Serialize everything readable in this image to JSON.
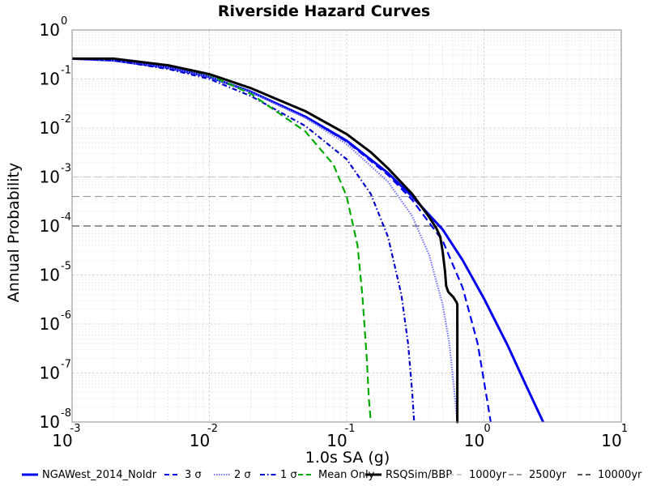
{
  "chart_data": {
    "type": "line",
    "title": "Riverside Hazard Curves",
    "xlabel": "1.0s SA (g)",
    "ylabel": "Annual Probability",
    "xscale": "log",
    "yscale": "log",
    "xlim": [
      0.001,
      10
    ],
    "ylim": [
      1e-08,
      1
    ],
    "grid": true,
    "legend_position": "bottom",
    "x_ticks": [
      {
        "base": "10",
        "exp": "-3"
      },
      {
        "base": "10",
        "exp": "-2"
      },
      {
        "base": "10",
        "exp": "-1"
      },
      {
        "base": "10",
        "exp": "0"
      },
      {
        "base": "10",
        "exp": "1"
      }
    ],
    "y_ticks": [
      {
        "base": "10",
        "exp": "0"
      },
      {
        "base": "10",
        "exp": "-1"
      },
      {
        "base": "10",
        "exp": "-2"
      },
      {
        "base": "10",
        "exp": "-3"
      },
      {
        "base": "10",
        "exp": "-4"
      },
      {
        "base": "10",
        "exp": "-5"
      },
      {
        "base": "10",
        "exp": "-6"
      },
      {
        "base": "10",
        "exp": "-7"
      },
      {
        "base": "10",
        "exp": "-8"
      }
    ],
    "series": [
      {
        "name": "NGAWest_2014_NoIdr",
        "color": "#0000ee",
        "dash": "solid",
        "x": [
          0.001,
          0.002,
          0.005,
          0.01,
          0.02,
          0.05,
          0.1,
          0.2,
          0.3,
          0.5,
          0.7,
          1.0,
          1.5,
          2.0,
          2.7
        ],
        "y": [
          0.26,
          0.24,
          0.17,
          0.11,
          0.055,
          0.017,
          0.0055,
          0.0012,
          0.0004,
          8.5e-05,
          2e-05,
          3.3e-06,
          3.5e-07,
          6e-08,
          1e-08
        ]
      },
      {
        "name": "3 σ",
        "color": "#0000ee",
        "dash": "dashed",
        "x": [
          0.001,
          0.002,
          0.005,
          0.01,
          0.02,
          0.05,
          0.1,
          0.2,
          0.3,
          0.5,
          0.7,
          0.9,
          1.05,
          1.12
        ],
        "y": [
          0.26,
          0.24,
          0.17,
          0.11,
          0.055,
          0.017,
          0.0053,
          0.0011,
          0.00034,
          5e-05,
          5.5e-06,
          4e-07,
          3e-08,
          1e-08
        ]
      },
      {
        "name": "2 σ",
        "color": "#7777ff",
        "dash": "dotted",
        "x": [
          0.001,
          0.002,
          0.005,
          0.01,
          0.02,
          0.05,
          0.1,
          0.2,
          0.3,
          0.4,
          0.5,
          0.56,
          0.6,
          0.64
        ],
        "y": [
          0.26,
          0.24,
          0.17,
          0.11,
          0.054,
          0.016,
          0.0047,
          0.0008,
          0.00016,
          2.5e-05,
          2.5e-06,
          4e-07,
          6e-08,
          1e-08
        ]
      },
      {
        "name": "1 σ",
        "color": "#0000cc",
        "dash": "dashdot",
        "x": [
          0.001,
          0.002,
          0.005,
          0.01,
          0.02,
          0.05,
          0.1,
          0.15,
          0.2,
          0.25,
          0.28,
          0.3,
          0.31
        ],
        "y": [
          0.26,
          0.24,
          0.16,
          0.1,
          0.045,
          0.011,
          0.0023,
          0.00045,
          6e-05,
          4e-06,
          4e-07,
          4e-08,
          1e-08
        ]
      },
      {
        "name": "Mean Only",
        "color": "#00aa00",
        "dash": "dashed",
        "x": [
          0.001,
          0.002,
          0.005,
          0.01,
          0.02,
          0.05,
          0.08,
          0.1,
          0.12,
          0.13,
          0.14,
          0.145,
          0.15
        ],
        "y": [
          0.26,
          0.26,
          0.19,
          0.12,
          0.05,
          0.0085,
          0.0018,
          0.0004,
          4e-05,
          4e-06,
          2e-07,
          3e-08,
          1e-08
        ]
      },
      {
        "name": "RSQSim/BBP",
        "color": "#000000",
        "dash": "solid",
        "x": [
          0.001,
          0.002,
          0.005,
          0.01,
          0.02,
          0.05,
          0.1,
          0.15,
          0.2,
          0.3,
          0.4,
          0.45,
          0.48,
          0.5,
          0.52,
          0.53,
          0.55,
          0.6,
          0.62,
          0.63,
          0.64,
          0.64,
          0.65
        ],
        "y": [
          0.26,
          0.26,
          0.19,
          0.125,
          0.065,
          0.022,
          0.0075,
          0.0032,
          0.0015,
          0.00045,
          0.00015,
          9e-05,
          6e-05,
          3e-05,
          1.2e-05,
          6e-06,
          4.5e-06,
          3.5e-06,
          3e-06,
          2.8e-06,
          2.5e-06,
          1e-08,
          1e-08
        ]
      },
      {
        "name": "1000yr",
        "color": "#cccccc",
        "dash": "dashed",
        "y_const": 0.001
      },
      {
        "name": "2500yr",
        "color": "#999999",
        "dash": "dashed",
        "y_const": 0.0004
      },
      {
        "name": "10000yr",
        "color": "#555555",
        "dash": "dashed",
        "y_const": 0.0001
      }
    ]
  }
}
